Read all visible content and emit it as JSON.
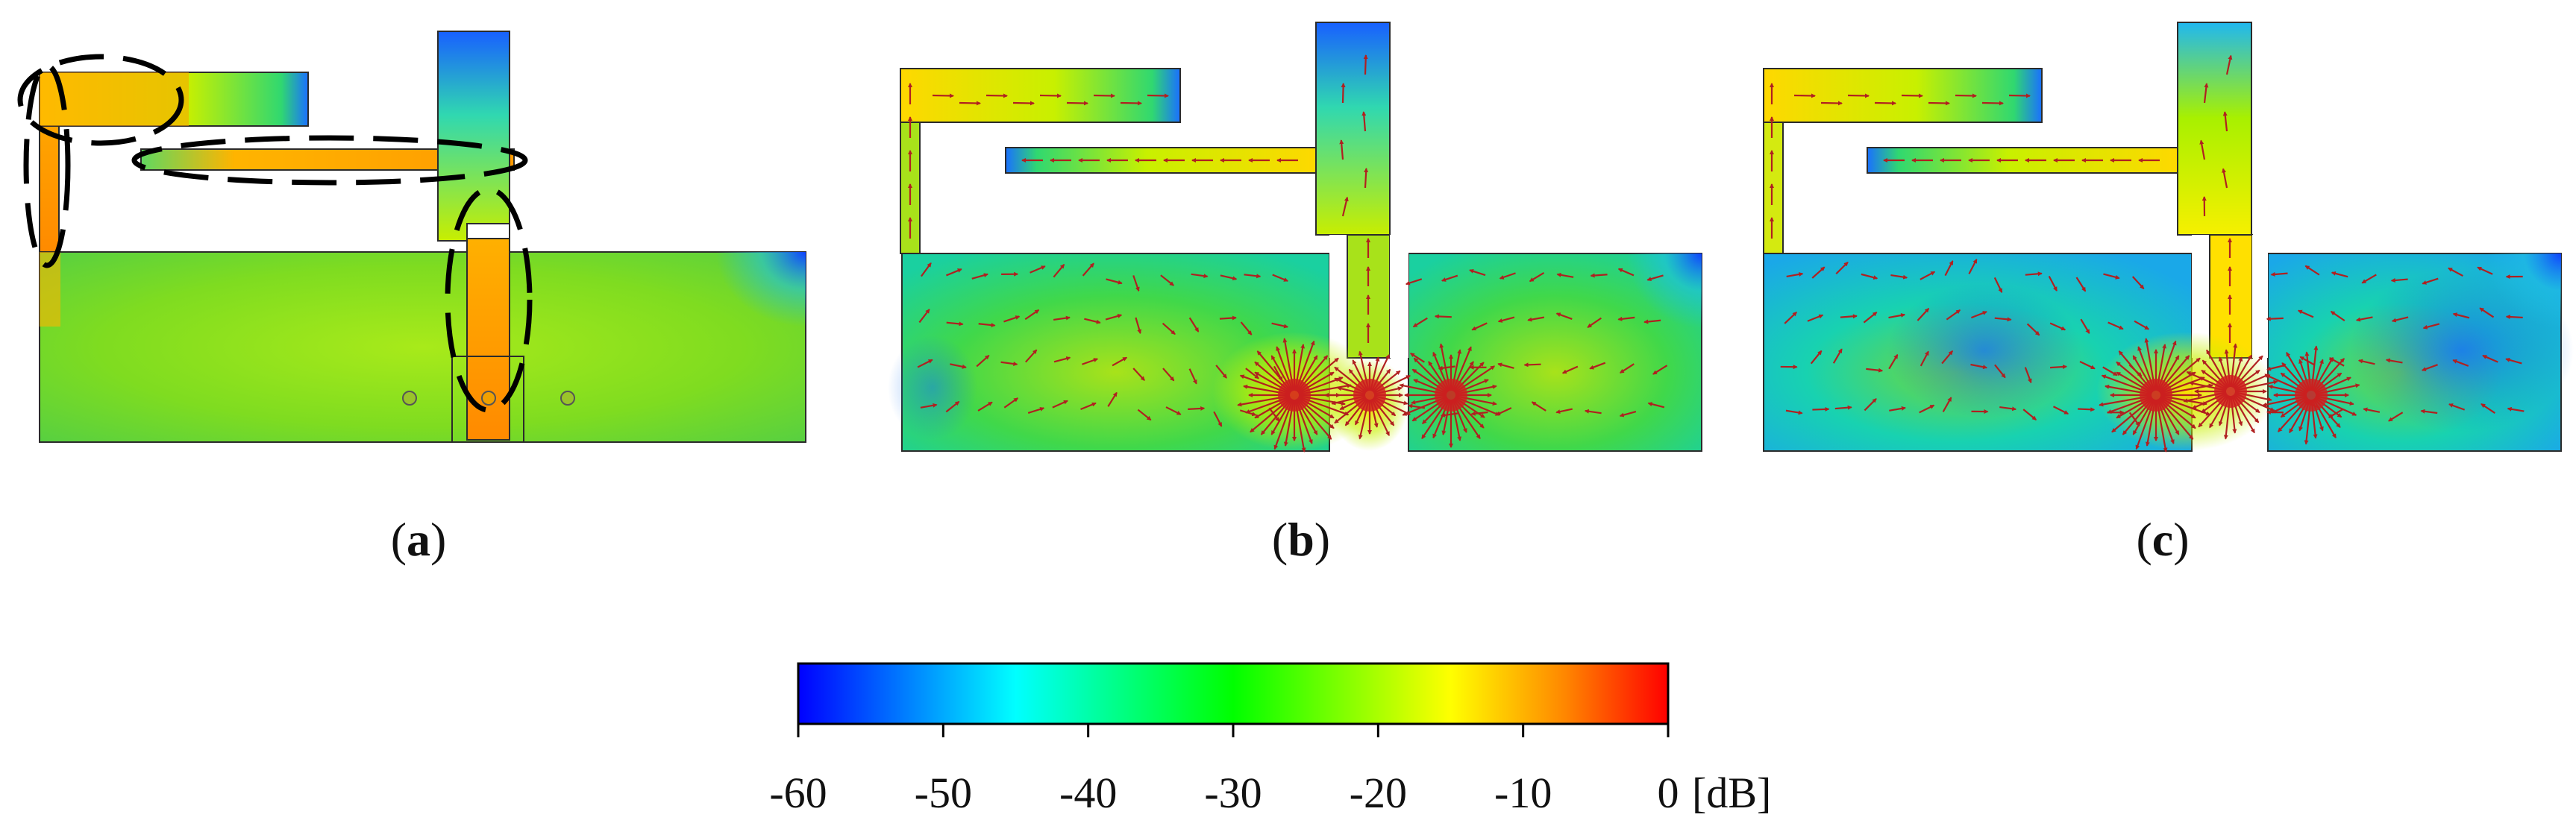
{
  "panels": [
    {
      "id": "a",
      "label": "a",
      "vectors": false
    },
    {
      "id": "b",
      "label": "b",
      "vectors": true
    },
    {
      "id": "c",
      "label": "c",
      "vectors": true
    }
  ],
  "colorbar": {
    "min": -60,
    "max": 0,
    "tick_labels": [
      "-60",
      "-50",
      "-40",
      "-30",
      "-20",
      "-10",
      "0"
    ],
    "unit": "[dB]",
    "colormap": [
      "#0000ff",
      "#00ffff",
      "#00ff00",
      "#ffff00",
      "#ff8800",
      "#ff0000"
    ]
  },
  "colors": {
    "outline": "#2b2b2b",
    "arrow": "#b02020",
    "dashed_highlight": "#000000",
    "current_path_fill": "#ff9900"
  }
}
